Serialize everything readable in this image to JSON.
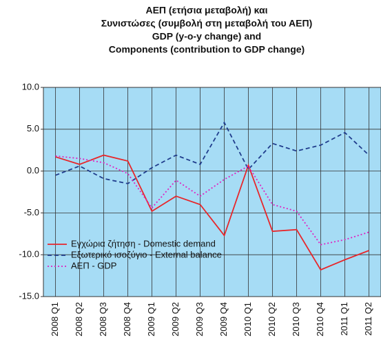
{
  "chart_data": {
    "type": "line",
    "title": [
      "ΑΕΠ (ετήσια μεταβολή) και",
      "Συνιστώσες (συμβολή στη μεταβολή του ΑΕΠ)",
      "GDP (y-o-y change) and",
      "Components (contribution to GDP change)"
    ],
    "categories": [
      "2008 Q1",
      "2008 Q2",
      "2008 Q3",
      "2008 Q4",
      "2009 Q1",
      "2009 Q2",
      "2009 Q3",
      "2009 Q4",
      "2010 Q1",
      "2010 Q2",
      "2010 Q3",
      "2010 Q4",
      "2011 Q1",
      "2011 Q2"
    ],
    "series": [
      {
        "name": "Εγχώρια ζήτηση - Domestic demand",
        "color": "#e8262a",
        "linestyle": "solid",
        "values": [
          1.7,
          0.8,
          1.9,
          1.2,
          -4.8,
          -3.0,
          -4.0,
          -7.7,
          0.7,
          -7.2,
          -7.0,
          -11.8,
          -10.6,
          -9.5
        ]
      },
      {
        "name": "Εξωτερικό ισοζύγιο - External balance",
        "color": "#1f3c8c",
        "linestyle": "dashed",
        "values": [
          -0.5,
          0.6,
          -0.9,
          -1.5,
          0.4,
          1.9,
          0.8,
          5.8,
          0.2,
          3.3,
          2.4,
          3.1,
          4.6,
          1.9
        ]
      },
      {
        "name": "ΑΕΠ - GDP",
        "color": "#e020c0",
        "linestyle": "dotted",
        "values": [
          1.8,
          1.5,
          1.0,
          -0.3,
          -4.4,
          -1.1,
          -3.0,
          -1.0,
          0.6,
          -4.0,
          -4.8,
          -8.8,
          -8.2,
          -7.3
        ]
      }
    ],
    "ylim": [
      -15,
      10
    ],
    "yticks": [
      {
        "value": -15,
        "label": "-15.0"
      },
      {
        "value": -10,
        "label": "-10.0"
      },
      {
        "value": -5,
        "label": "-5.0"
      },
      {
        "value": 0,
        "label": "0.0"
      },
      {
        "value": 5,
        "label": "5.0"
      },
      {
        "value": 10,
        "label": "10.0"
      }
    ],
    "grid": true,
    "legend": "lower left",
    "background": "#a6dcf5"
  }
}
